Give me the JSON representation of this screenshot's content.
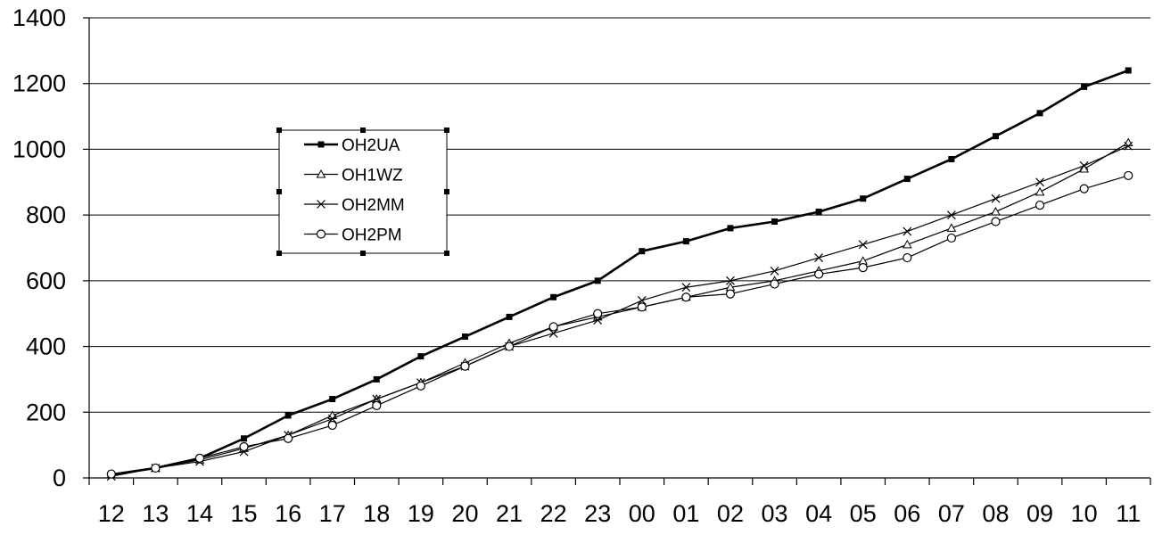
{
  "chart_data": {
    "type": "line",
    "title": "",
    "xlabel": "",
    "ylabel": "",
    "categories": [
      "12",
      "13",
      "14",
      "15",
      "16",
      "17",
      "18",
      "19",
      "20",
      "21",
      "22",
      "23",
      "00",
      "01",
      "02",
      "03",
      "04",
      "05",
      "06",
      "07",
      "08",
      "09",
      "10",
      "11"
    ],
    "yticks": [
      "0",
      "200",
      "400",
      "600",
      "800",
      "1000",
      "1200",
      "1400"
    ],
    "ylim": [
      0,
      1400
    ],
    "grid": "horizontal",
    "legend_position": "left",
    "series": [
      {
        "name": "OH2UA",
        "marker": "square",
        "values": [
          10,
          30,
          60,
          120,
          190,
          240,
          300,
          370,
          430,
          490,
          550,
          600,
          690,
          720,
          760,
          780,
          810,
          850,
          910,
          970,
          1040,
          1110,
          1190,
          1240
        ]
      },
      {
        "name": "OH1WZ",
        "marker": "triangle",
        "values": [
          10,
          30,
          55,
          90,
          130,
          190,
          240,
          290,
          350,
          410,
          460,
          490,
          520,
          550,
          580,
          600,
          630,
          660,
          710,
          760,
          810,
          870,
          940,
          1020
        ]
      },
      {
        "name": "OH2MM",
        "marker": "x",
        "values": [
          5,
          30,
          50,
          80,
          130,
          180,
          240,
          290,
          340,
          400,
          440,
          480,
          540,
          580,
          600,
          630,
          670,
          710,
          750,
          800,
          850,
          900,
          950,
          1010
        ]
      },
      {
        "name": "OH2PM",
        "marker": "circle",
        "values": [
          12,
          30,
          60,
          95,
          120,
          160,
          220,
          280,
          340,
          400,
          460,
          500,
          520,
          550,
          560,
          590,
          620,
          640,
          670,
          730,
          780,
          830,
          880,
          920
        ]
      }
    ],
    "colors": {
      "line": "#000000",
      "grid": "#000000",
      "background": "#ffffff"
    }
  }
}
